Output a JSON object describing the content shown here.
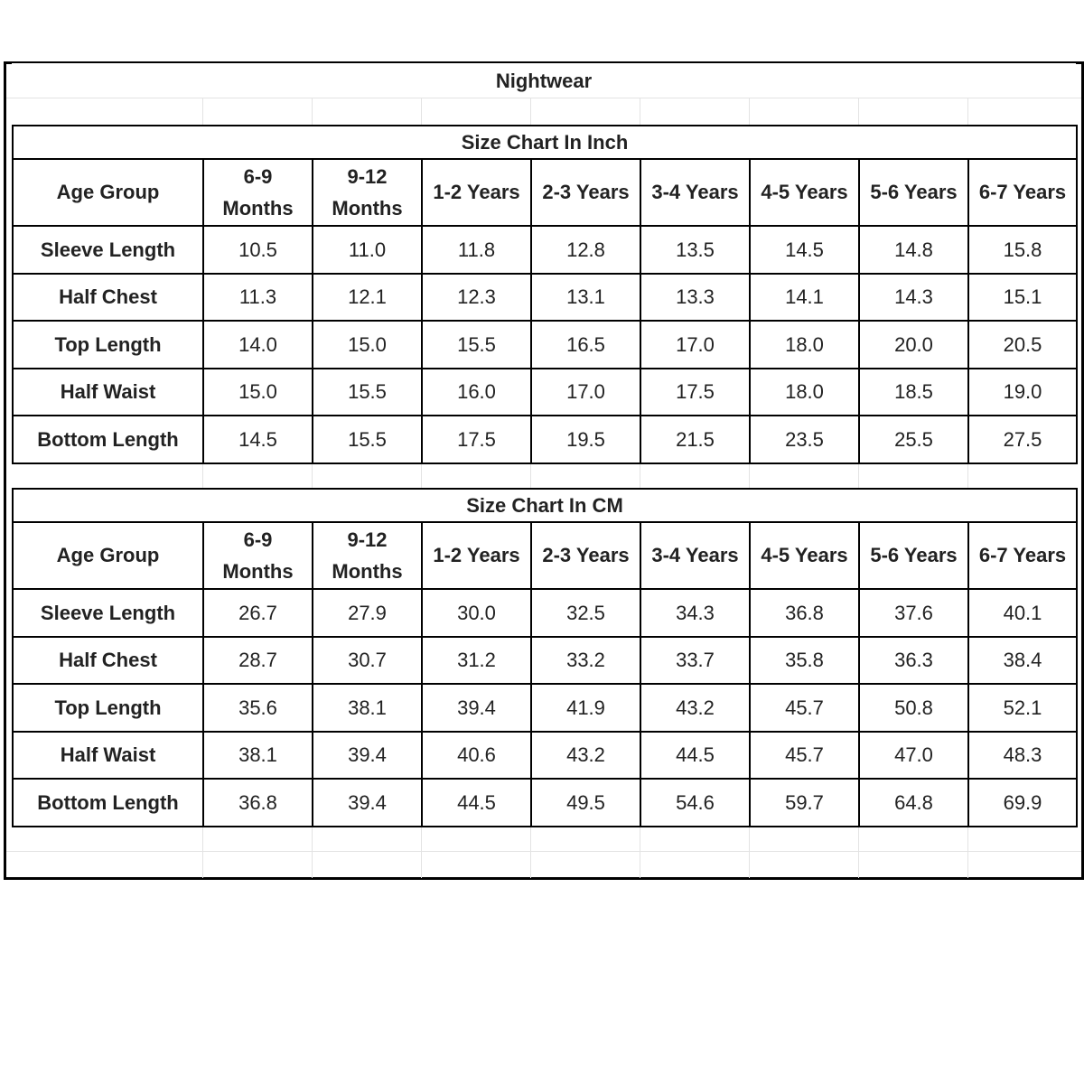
{
  "title": "Nightwear",
  "tables": [
    {
      "title": "Size Chart In Inch",
      "header": [
        "Age Group",
        "6-9 Months",
        "9-12 Months",
        "1-2 Years",
        "2-3 Years",
        "3-4 Years",
        "4-5 Years",
        "5-6 Years",
        "6-7 Years"
      ],
      "rows": [
        [
          "Sleeve Length",
          "10.5",
          "11.0",
          "11.8",
          "12.8",
          "13.5",
          "14.5",
          "14.8",
          "15.8"
        ],
        [
          "Half Chest",
          "11.3",
          "12.1",
          "12.3",
          "13.1",
          "13.3",
          "14.1",
          "14.3",
          "15.1"
        ],
        [
          "Top Length",
          "14.0",
          "15.0",
          "15.5",
          "16.5",
          "17.0",
          "18.0",
          "20.0",
          "20.5"
        ],
        [
          "Half Waist",
          "15.0",
          "15.5",
          "16.0",
          "17.0",
          "17.5",
          "18.0",
          "18.5",
          "19.0"
        ],
        [
          "Bottom Length",
          "14.5",
          "15.5",
          "17.5",
          "19.5",
          "21.5",
          "23.5",
          "25.5",
          "27.5"
        ]
      ]
    },
    {
      "title": "Size Chart In CM",
      "header": [
        "Age Group",
        "6-9 Months",
        "9-12 Months",
        "1-2 Years",
        "2-3 Years",
        "3-4 Years",
        "4-5 Years",
        "5-6 Years",
        "6-7 Years"
      ],
      "rows": [
        [
          "Sleeve Length",
          "26.7",
          "27.9",
          "30.0",
          "32.5",
          "34.3",
          "36.8",
          "37.6",
          "40.1"
        ],
        [
          "Half Chest",
          "28.7",
          "30.7",
          "31.2",
          "33.2",
          "33.7",
          "35.8",
          "36.3",
          "38.4"
        ],
        [
          "Top Length",
          "35.6",
          "38.1",
          "39.4",
          "41.9",
          "43.2",
          "45.7",
          "50.8",
          "52.1"
        ],
        [
          "Half Waist",
          "38.1",
          "39.4",
          "40.6",
          "43.2",
          "44.5",
          "45.7",
          "47.0",
          "48.3"
        ],
        [
          "Bottom Length",
          "36.8",
          "39.4",
          "44.5",
          "49.5",
          "54.6",
          "59.7",
          "64.8",
          "69.9"
        ]
      ]
    }
  ]
}
